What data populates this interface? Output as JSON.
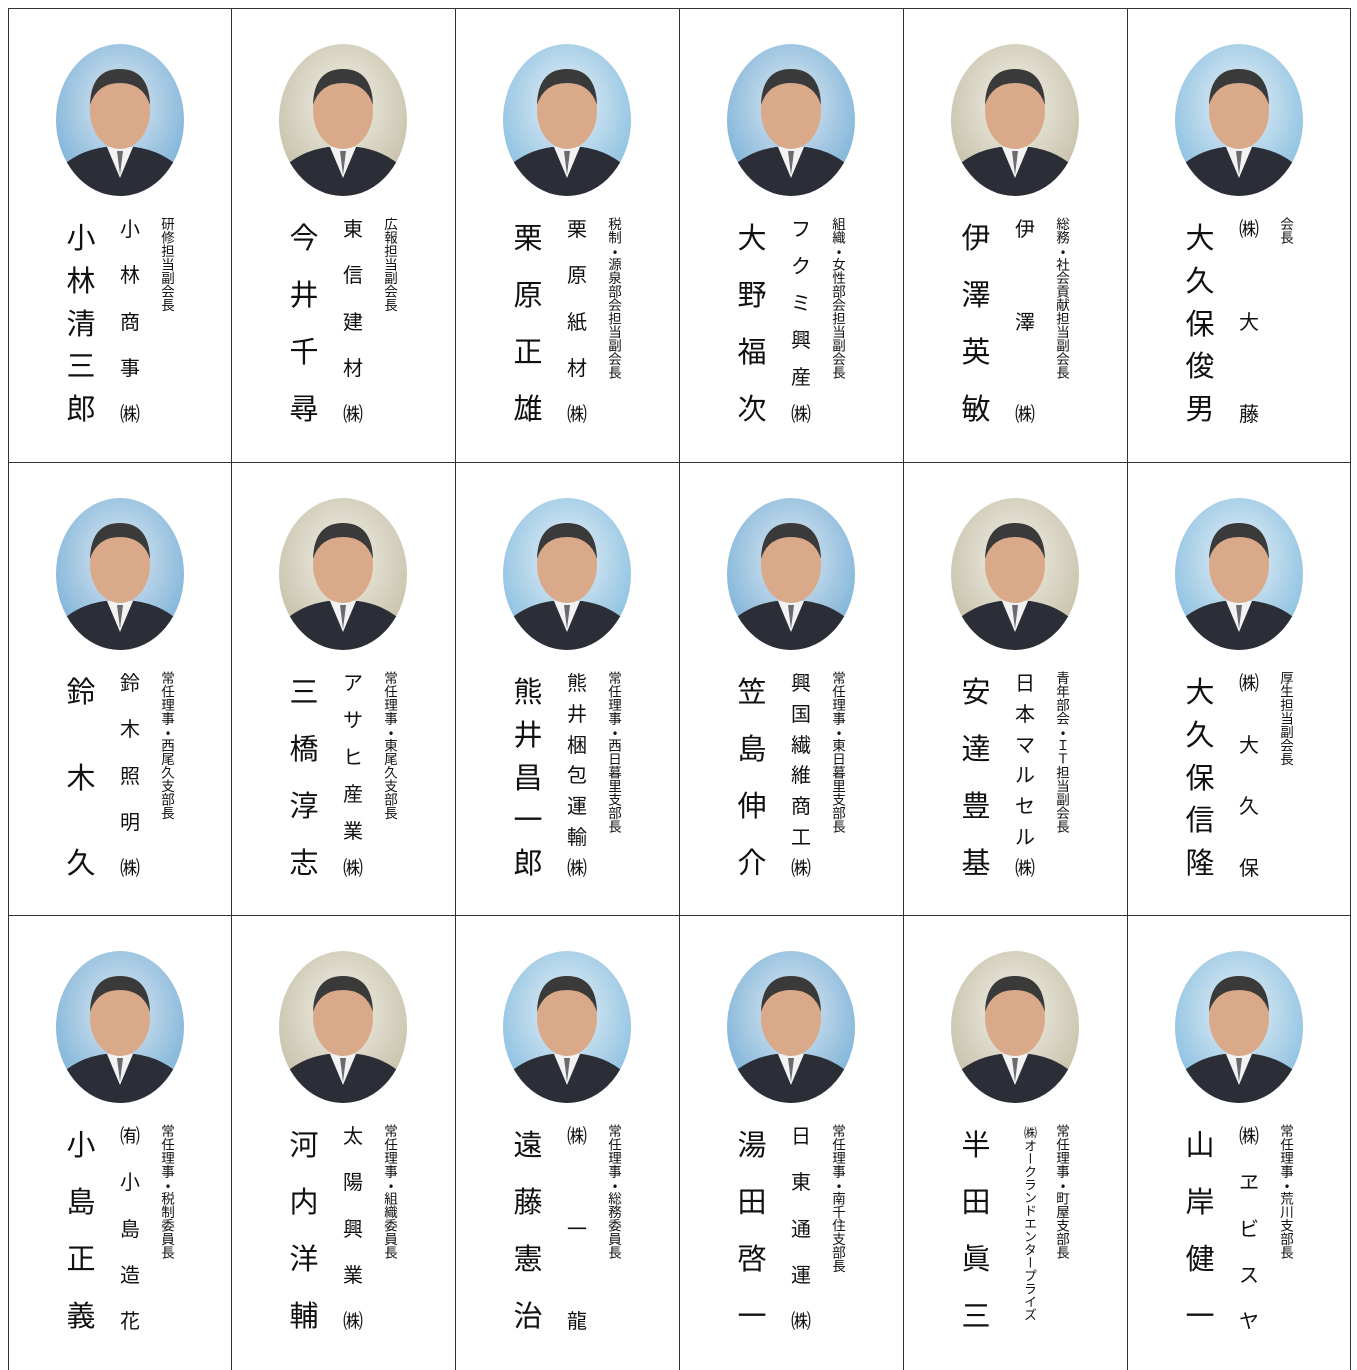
{
  "people": [
    {
      "name": "小林清三郎",
      "company": "小林商事㈱",
      "role": "研修担当副会長"
    },
    {
      "name": "今井千尋",
      "company": "東信建材㈱",
      "role": "広報担当副会長"
    },
    {
      "name": "栗原正雄",
      "company": "栗原紙材㈱",
      "role": "税制・源泉部会担当副会長"
    },
    {
      "name": "大野福次",
      "company": "フクミ興産㈱",
      "role": "組織・女性部会担当副会長"
    },
    {
      "name": "伊澤英敏",
      "company": "伊澤㈱",
      "role": "総務・社会貢献担当副会長"
    },
    {
      "name": "大久保俊男",
      "company": "㈱大藤",
      "role": "会長"
    },
    {
      "name": "鈴木久",
      "company": "鈴木照明㈱",
      "role": "常任理事・西尾久支部長"
    },
    {
      "name": "三橋淳志",
      "company": "アサヒ産業㈱",
      "role": "常任理事・東尾久支部長"
    },
    {
      "name": "熊井昌一郎",
      "company": "熊井梱包運輸㈱",
      "role": "常任理事・西日暮里支部長"
    },
    {
      "name": "笠島伸介",
      "company": "興国繊維商工㈱",
      "role": "常任理事・東日暮里支部長"
    },
    {
      "name": "安達豊基",
      "company": "日本マルセル㈱",
      "role": "青年部会・ＩＴ担当副会長"
    },
    {
      "name": "大久保信隆",
      "company": "㈱大久保",
      "role": "厚生担当副会長"
    },
    {
      "name": "小島正義",
      "company": "㈲小島造花",
      "role": "常任理事・税制委員長"
    },
    {
      "name": "河内洋輔",
      "company": "太陽興業㈱",
      "role": "常任理事・組織委員長"
    },
    {
      "name": "遠藤憲治",
      "company": "㈱一龍",
      "role": "常任理事・総務委員長"
    },
    {
      "name": "湯田啓一",
      "company": "日東通運㈱",
      "role": "常任理事・南千住支部長"
    },
    {
      "name": "半田眞三",
      "company": "㈱オークランドエンタープライズ",
      "role": "常任理事・町屋支部長"
    },
    {
      "name": "山岸健一",
      "company": "㈱ヱビスヤ",
      "role": "常任理事・荒川支部長"
    }
  ]
}
